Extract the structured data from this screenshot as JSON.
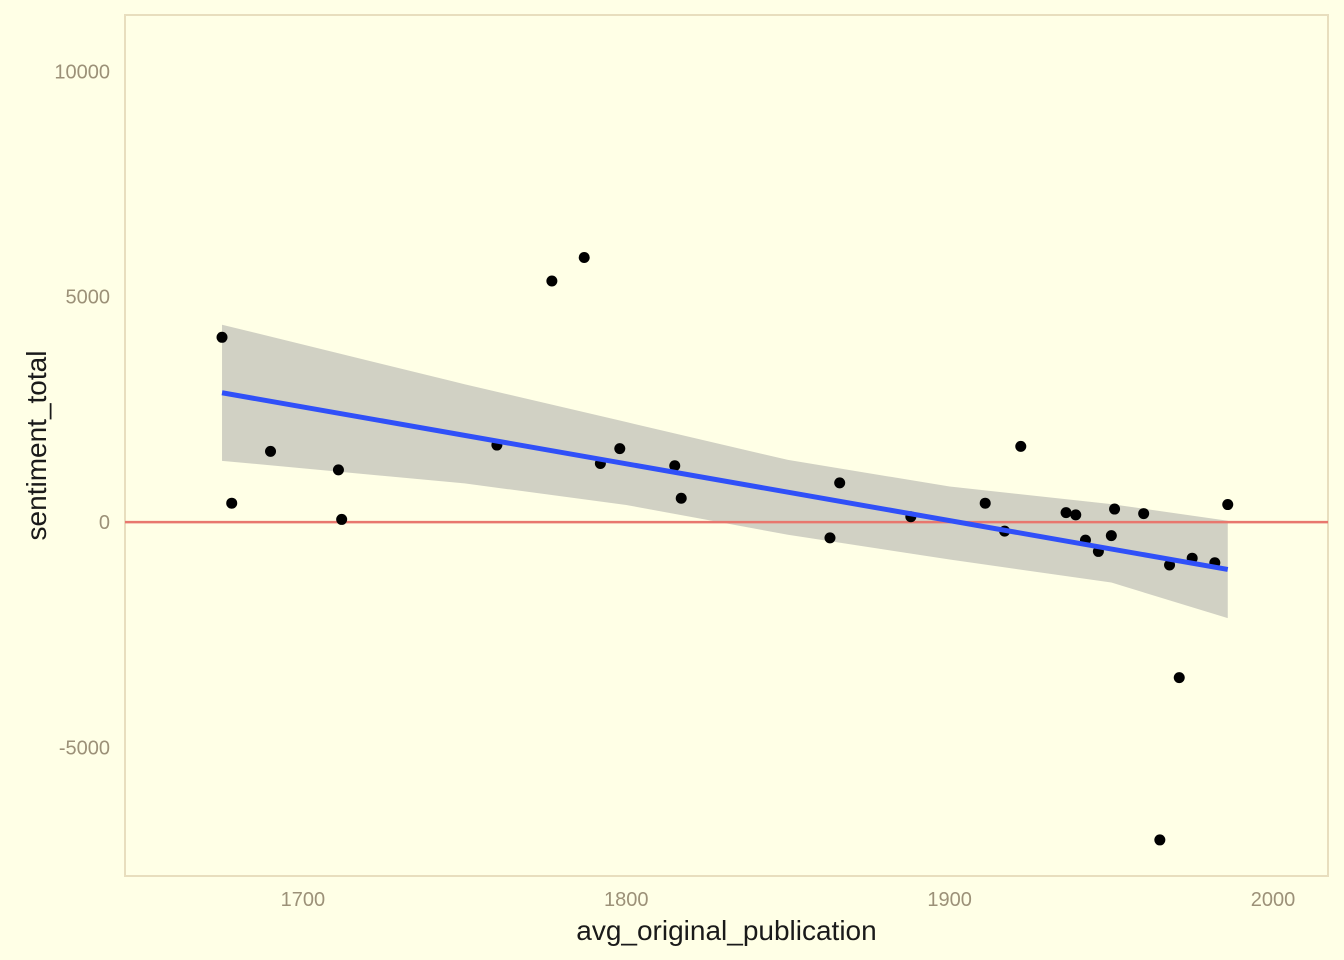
{
  "chart_data": {
    "type": "scatter",
    "title": "",
    "xlabel": "avg_original_publication",
    "ylabel": "sentiment_total",
    "xlim": [
      1645,
      2017
    ],
    "ylim": [
      -7850,
      11250
    ],
    "x_ticks": [
      1700,
      1800,
      1900,
      2000
    ],
    "y_ticks": [
      -5000,
      0,
      5000,
      10000
    ],
    "x_tick_labels": [
      "1700",
      "1800",
      "1900",
      "2000"
    ],
    "y_tick_labels": [
      "-5000",
      "0",
      "5000",
      "10000"
    ],
    "grid": false,
    "legend": "none",
    "points": [
      {
        "x": 1675,
        "y": 4100
      },
      {
        "x": 1678,
        "y": 420
      },
      {
        "x": 1690,
        "y": 1570
      },
      {
        "x": 1711,
        "y": 1160
      },
      {
        "x": 1712,
        "y": 60
      },
      {
        "x": 1760,
        "y": 1710
      },
      {
        "x": 1777,
        "y": 5350
      },
      {
        "x": 1787,
        "y": 5870
      },
      {
        "x": 1792,
        "y": 1300
      },
      {
        "x": 1798,
        "y": 1630
      },
      {
        "x": 1815,
        "y": 1250
      },
      {
        "x": 1817,
        "y": 530
      },
      {
        "x": 1863,
        "y": -350
      },
      {
        "x": 1866,
        "y": 870
      },
      {
        "x": 1888,
        "y": 120
      },
      {
        "x": 1911,
        "y": 420
      },
      {
        "x": 1917,
        "y": -200
      },
      {
        "x": 1922,
        "y": 1680
      },
      {
        "x": 1936,
        "y": 210
      },
      {
        "x": 1939,
        "y": 160
      },
      {
        "x": 1942,
        "y": -400
      },
      {
        "x": 1946,
        "y": -650
      },
      {
        "x": 1950,
        "y": -300
      },
      {
        "x": 1951,
        "y": 290
      },
      {
        "x": 1960,
        "y": 190
      },
      {
        "x": 1965,
        "y": -7050
      },
      {
        "x": 1968,
        "y": -950
      },
      {
        "x": 1971,
        "y": -3450
      },
      {
        "x": 1975,
        "y": -800
      },
      {
        "x": 1982,
        "y": -900
      },
      {
        "x": 1986,
        "y": 390
      }
    ],
    "trend_line": {
      "x": [
        1675,
        1986
      ],
      "y": [
        2870,
        -1050
      ]
    },
    "confidence_band": {
      "x": [
        1675,
        1750,
        1800,
        1850,
        1900,
        1950,
        1986
      ],
      "upper": [
        4380,
        3060,
        2220,
        1380,
        790,
        400,
        30
      ],
      "lower": [
        1360,
        860,
        380,
        -280,
        -830,
        -1340,
        -2130
      ]
    },
    "reference_line_y": 0,
    "colors": {
      "background": "#FFFFE6",
      "panel_border": "#E8DEBE",
      "points": "#000000",
      "trend_line": "#3050F8",
      "band": "#CCCCC0",
      "reference_line": "#E8776E",
      "tick_text": "#9C9178",
      "axis_title": "#1A1A1A"
    }
  }
}
